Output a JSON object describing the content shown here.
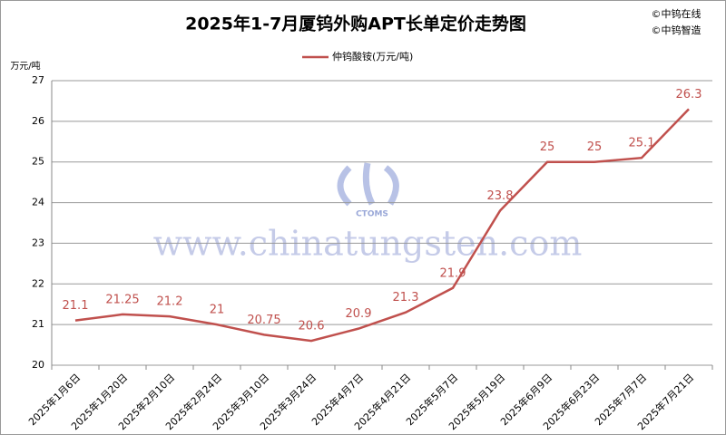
{
  "chart_data": {
    "type": "line",
    "title": "2025年1-7月厦钨外购APT长单定价走势图",
    "annotations": [
      "©中钨在线",
      "©中钨智造"
    ],
    "watermark": [
      "www.chinatungsten.com",
      "CTOMS"
    ],
    "y_label": "万元/吨",
    "categories": [
      "2025年1月6日",
      "2025年1月20日",
      "2025年2月10日",
      "2025年2月24日",
      "2025年3月10日",
      "2025年3月24日",
      "2025年4月7日",
      "2025年4月21日",
      "2025年5月7日",
      "2025年5月19日",
      "2025年6月9日",
      "2025年6月23日",
      "2025年7月7日",
      "2025年7月21日"
    ],
    "series": [
      {
        "name": "仲钨酸铵(万元/吨)",
        "color": "#c0504d",
        "values": [
          21.1,
          21.25,
          21.2,
          21,
          20.75,
          20.6,
          20.9,
          21.3,
          21.9,
          23.8,
          25,
          25,
          25.1,
          26.3
        ]
      }
    ],
    "ylim": [
      20,
      27
    ],
    "yticks": [
      20,
      21,
      22,
      23,
      24,
      25,
      26,
      27
    ],
    "grid": true,
    "legend": "top"
  }
}
